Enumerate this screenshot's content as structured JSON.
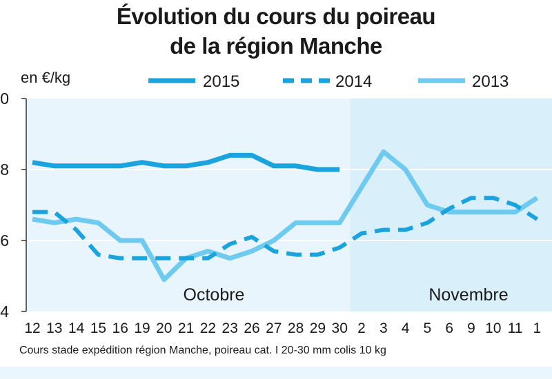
{
  "chart_data": {
    "type": "line",
    "title": "Évolution du cours du poireau",
    "subtitle": "de la région Manche",
    "ylabel": "en €/kg",
    "ylim": [
      0.4,
      1.0
    ],
    "yticks": [
      "0",
      "8",
      "6",
      "4"
    ],
    "categories": [
      "12",
      "13",
      "14",
      "15",
      "16",
      "19",
      "20",
      "21",
      "22",
      "23",
      "26",
      "27",
      "28",
      "29",
      "30",
      "2",
      "3",
      "4",
      "5",
      "6",
      "9",
      "10",
      "11",
      "1"
    ],
    "months": [
      "Octobre",
      "Novembre"
    ],
    "series": [
      {
        "name": "2015",
        "color": "#1aa3dc",
        "style": "solid",
        "values": [
          0.82,
          0.81,
          0.81,
          0.81,
          0.81,
          0.82,
          0.81,
          0.81,
          0.82,
          0.84,
          0.84,
          0.81,
          0.81,
          0.8,
          0.8,
          null,
          null,
          null,
          null,
          null,
          null,
          null,
          null,
          null
        ]
      },
      {
        "name": "2014",
        "color": "#1aa3dc",
        "style": "dashed",
        "values": [
          0.68,
          0.68,
          0.63,
          0.56,
          0.55,
          0.55,
          0.55,
          0.55,
          0.55,
          0.59,
          0.61,
          0.57,
          0.56,
          0.56,
          0.58,
          0.62,
          0.63,
          0.63,
          0.65,
          0.69,
          0.72,
          0.72,
          0.7,
          0.66
        ]
      },
      {
        "name": "2013",
        "color": "#6fcaf0",
        "style": "solid",
        "values": [
          0.66,
          0.65,
          0.66,
          0.65,
          0.6,
          0.6,
          0.49,
          0.55,
          0.57,
          0.55,
          0.57,
          0.6,
          0.65,
          0.65,
          0.65,
          0.75,
          0.85,
          0.8,
          0.7,
          0.68,
          0.68,
          0.68,
          0.68,
          0.72
        ]
      }
    ]
  },
  "footnote": "Cours stade expédition région Manche, poireau cat. I 20-30 mm colis 10 kg"
}
